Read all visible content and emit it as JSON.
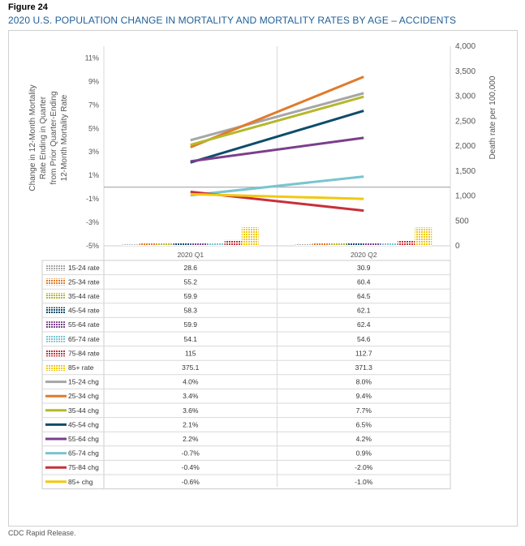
{
  "figure_label": "Figure 24",
  "figure_title": "2020 U.S. POPULATION CHANGE IN MORTALITY AND MORTALITY RATES BY AGE – ACCIDENTS",
  "source": "CDC Rapid Release.",
  "chart_data": {
    "type": "bar+line",
    "categories": [
      "2020 Q1",
      "2020 Q2"
    ],
    "y_left": {
      "label_lines": [
        "Change in 12-Month Mortality",
        "Rate Ending in  Quarter",
        "from Prior Quarter-Ending",
        "12-Month Mortality Rate"
      ],
      "min": -5,
      "max": 12,
      "ticks": [
        -5,
        -3,
        -1,
        1,
        3,
        5,
        7,
        9,
        11
      ],
      "tick_labels": [
        "-5%",
        "-3%",
        "-1%",
        "1%",
        "3%",
        "5%",
        "7%",
        "9%",
        "11%"
      ]
    },
    "y_right": {
      "label": "Death rate per 100,000",
      "min": 0,
      "max": 4000,
      "ticks": [
        0,
        500,
        1000,
        1500,
        2000,
        2500,
        3000,
        3500,
        4000
      ],
      "tick_labels": [
        "0",
        "500",
        "1,000",
        "1,500",
        "2,000",
        "2,500",
        "3,000",
        "3,500",
        "4,000"
      ]
    },
    "bar_series": [
      {
        "name": "15-24 rate",
        "color": "#a6a6a6",
        "values": [
          28.6,
          30.9
        ],
        "labels": [
          "28.6",
          "30.9"
        ]
      },
      {
        "name": "25-34 rate",
        "color": "#e07b2a",
        "values": [
          55.2,
          60.4
        ],
        "labels": [
          "55.2",
          "60.4"
        ]
      },
      {
        "name": "35-44 rate",
        "color": "#b5b82b",
        "values": [
          59.9,
          64.5
        ],
        "labels": [
          "59.9",
          "64.5"
        ]
      },
      {
        "name": "45-54 rate",
        "color": "#0f4c6b",
        "values": [
          58.3,
          62.1
        ],
        "labels": [
          "58.3",
          "62.1"
        ]
      },
      {
        "name": "55-64 rate",
        "color": "#7b3f8c",
        "values": [
          59.9,
          62.4
        ],
        "labels": [
          "59.9",
          "62.4"
        ]
      },
      {
        "name": "65-74 rate",
        "color": "#79c5cf",
        "values": [
          54.1,
          54.6
        ],
        "labels": [
          "54.1",
          "54.6"
        ]
      },
      {
        "name": "75-84 rate",
        "color": "#c7303a",
        "values": [
          115,
          112.7
        ],
        "labels": [
          "115",
          "112.7"
        ]
      },
      {
        "name": "85+ rate",
        "color": "#f2c80f",
        "values": [
          375.1,
          371.3
        ],
        "labels": [
          "375.1",
          "371.3"
        ]
      }
    ],
    "line_series": [
      {
        "name": "15-24 chg",
        "color": "#a6a6a6",
        "values": [
          4.0,
          8.0
        ],
        "labels": [
          "4.0%",
          "8.0%"
        ]
      },
      {
        "name": "25-34 chg",
        "color": "#e07b2a",
        "values": [
          3.4,
          9.4
        ],
        "labels": [
          "3.4%",
          "9.4%"
        ]
      },
      {
        "name": "35-44 chg",
        "color": "#b5b82b",
        "values": [
          3.6,
          7.7
        ],
        "labels": [
          "3.6%",
          "7.7%"
        ]
      },
      {
        "name": "45-54 chg",
        "color": "#0f4c6b",
        "values": [
          2.1,
          6.5
        ],
        "labels": [
          "2.1%",
          "6.5%"
        ]
      },
      {
        "name": "55-64 chg",
        "color": "#7b3f8c",
        "values": [
          2.2,
          4.2
        ],
        "labels": [
          "2.2%",
          "4.2%"
        ]
      },
      {
        "name": "65-74 chg",
        "color": "#79c5cf",
        "values": [
          -0.7,
          0.9
        ],
        "labels": [
          "-0.7%",
          "0.9%"
        ]
      },
      {
        "name": "75-84 chg",
        "color": "#c7303a",
        "values": [
          -0.4,
          -2.0
        ],
        "labels": [
          "-0.4%",
          "-2.0%"
        ]
      },
      {
        "name": "85+ chg",
        "color": "#f2c80f",
        "values": [
          -0.6,
          -1.0
        ],
        "labels": [
          "-0.6%",
          "-1.0%"
        ]
      }
    ]
  }
}
